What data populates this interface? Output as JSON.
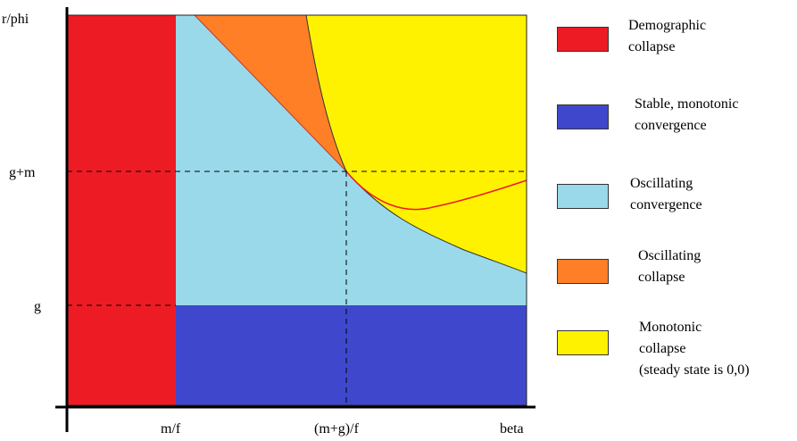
{
  "axes": {
    "y_title": "r/phi",
    "x_ticks": [
      "m/f",
      "(m+g)/f",
      "beta"
    ],
    "y_ticks": [
      "g+m",
      "g"
    ]
  },
  "regions": [
    {
      "key": "demographic_collapse",
      "color": "#ed1c24"
    },
    {
      "key": "stable_convergence",
      "color": "#3f48cc"
    },
    {
      "key": "oscillating_convergence",
      "color": "#99d9ea"
    },
    {
      "key": "oscillating_collapse",
      "color": "#ff7f27"
    },
    {
      "key": "monotonic_collapse",
      "color": "#fff200"
    }
  ],
  "boundary_line_color": "#ed1c24",
  "legend": [
    {
      "label": "Demographic\ncollapse",
      "color": "#ed1c24"
    },
    {
      "label": "Stable, monotonic\nconvergence",
      "color": "#3f48cc"
    },
    {
      "label": "Oscillating\nconvergence",
      "color": "#99d9ea"
    },
    {
      "label": "Oscillating\ncollapse",
      "color": "#ff7f27"
    },
    {
      "label": "Monotonic\ncollapse\n(steady state is 0,0)",
      "color": "#fff200"
    }
  ]
}
